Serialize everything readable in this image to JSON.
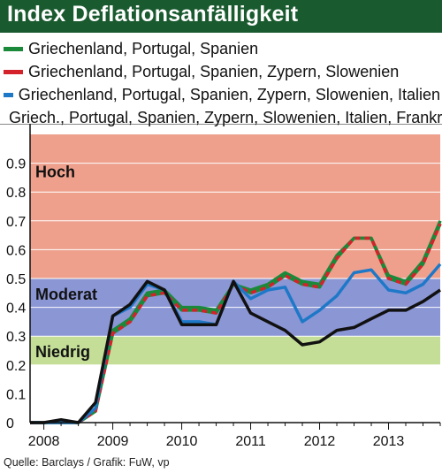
{
  "header": {
    "title": "Index Deflationsanfälligkeit"
  },
  "legend": {
    "items": [
      {
        "label": "Griechenland, Portugal, Spanien",
        "color": "#1a8a3a"
      },
      {
        "label": "Griechenland, Portugal, Spanien, Zypern, Slowenien",
        "color": "#d4222a"
      },
      {
        "label": "Griechenland, Portugal, Spanien, Zypern, Slowenien, Italien",
        "color": "#1e78c8"
      },
      {
        "label": "Griech., Portugal, Spanien, Zypern, Slowenien, Italien, Frankr.",
        "color": "#111111"
      }
    ]
  },
  "source": "Quelle: Barclays / Grafik: FuW, vp",
  "chart_data": {
    "type": "line",
    "title": "Index Deflationsanfälligkeit",
    "xlabel": "",
    "ylabel": "",
    "xlim": [
      2007.8,
      2013.75
    ],
    "ylim": [
      0,
      1.0
    ],
    "x_ticks": [
      2008,
      2009,
      2010,
      2011,
      2012,
      2013
    ],
    "y_ticks": [
      0,
      0.1,
      0.2,
      0.3,
      0.4,
      0.5,
      0.6,
      0.7,
      0.8,
      0.9
    ],
    "grid": "horizontal",
    "legend_position": "top",
    "bands": [
      {
        "label": "Hoch",
        "from": 0.5,
        "to": 1.0,
        "color": "#eea08d"
      },
      {
        "label": "Moderat",
        "from": 0.3,
        "to": 0.5,
        "color": "#8b96d4"
      },
      {
        "label": "Niedrig",
        "from": 0.2,
        "to": 0.3,
        "color": "#c4de97"
      }
    ],
    "x": [
      2007.8,
      2008.0,
      2008.25,
      2008.5,
      2008.75,
      2009.0,
      2009.25,
      2009.5,
      2009.75,
      2010.0,
      2010.25,
      2010.5,
      2010.75,
      2011.0,
      2011.25,
      2011.5,
      2011.75,
      2012.0,
      2012.25,
      2012.5,
      2012.75,
      2013.0,
      2013.25,
      2013.5,
      2013.75
    ],
    "series": [
      {
        "name": "Griechenland, Portugal, Spanien",
        "color": "#1a8a3a",
        "dashed": false,
        "values": [
          0.0,
          0.0,
          0.0,
          0.0,
          0.04,
          0.32,
          0.36,
          0.45,
          0.46,
          0.4,
          0.4,
          0.39,
          0.48,
          0.46,
          0.48,
          0.52,
          0.49,
          0.48,
          0.58,
          0.64,
          0.64,
          0.51,
          0.49,
          0.56,
          0.7
        ]
      },
      {
        "name": "Griechenland, Portugal, Spanien, Zypern, Slowenien",
        "color": "#d4222a",
        "dashed": true,
        "values": [
          0.0,
          0.0,
          0.0,
          0.0,
          0.04,
          0.31,
          0.35,
          0.44,
          0.45,
          0.39,
          0.39,
          0.38,
          0.48,
          0.45,
          0.47,
          0.51,
          0.48,
          0.47,
          0.57,
          0.64,
          0.64,
          0.5,
          0.48,
          0.55,
          0.69
        ]
      },
      {
        "name": "Griechenland, Portugal, Spanien, Zypern, Slowenien, Italien",
        "color": "#1e78c8",
        "dashed": false,
        "values": [
          0.0,
          0.0,
          0.0,
          0.0,
          0.05,
          0.37,
          0.4,
          0.48,
          0.46,
          0.35,
          0.35,
          0.34,
          0.49,
          0.43,
          0.46,
          0.47,
          0.35,
          0.39,
          0.44,
          0.52,
          0.53,
          0.46,
          0.45,
          0.48,
          0.55
        ]
      },
      {
        "name": "Griech., Portugal, Spanien, Zypern, Slowenien, Italien, Frankr.",
        "color": "#111111",
        "dashed": false,
        "values": [
          0.0,
          0.0,
          0.01,
          0.0,
          0.07,
          0.37,
          0.41,
          0.49,
          0.46,
          0.34,
          0.34,
          0.34,
          0.49,
          0.38,
          0.35,
          0.32,
          0.27,
          0.28,
          0.32,
          0.33,
          0.36,
          0.39,
          0.39,
          0.42,
          0.46
        ]
      }
    ]
  }
}
